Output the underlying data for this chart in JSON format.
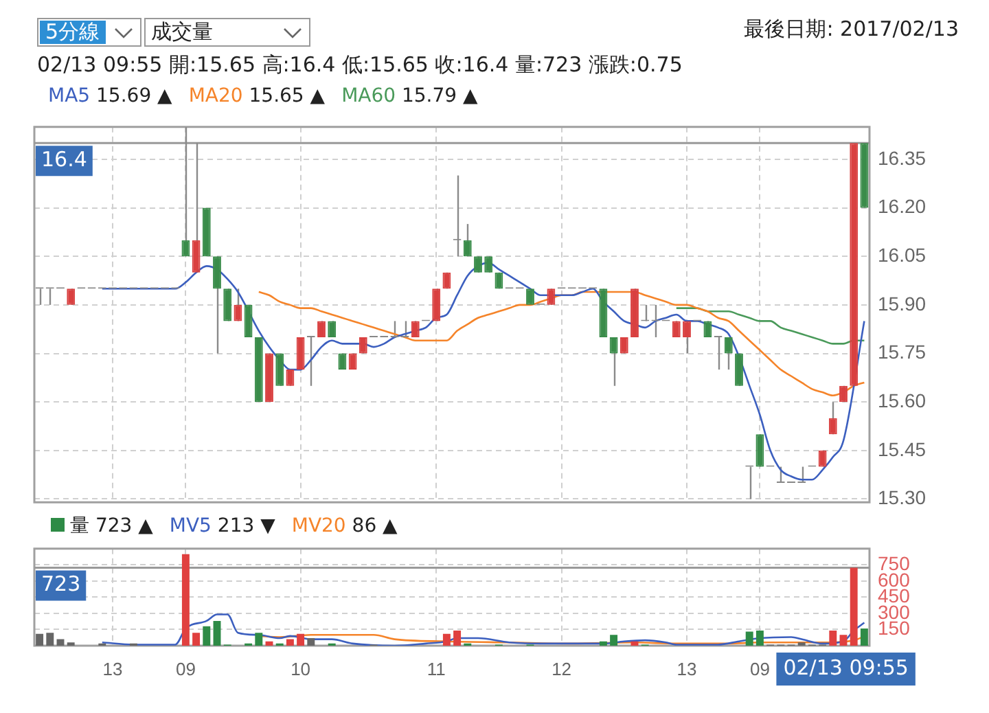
{
  "chart_data": [
    {
      "type": "candlestick",
      "title": "最後日期: 2017/02/13",
      "subtitle": "02/13 09:55 開:15.65 高:16.4 低:15.65 收:16.4 量:723 漲跌:0.75",
      "annotations": [
        "5分線",
        "成交量"
      ],
      "categories": [
        null,
        null,
        null,
        null,
        null,
        null,
        null,
        "13",
        null,
        null,
        null,
        null,
        null,
        null,
        "09",
        null,
        null,
        null,
        null,
        null,
        null,
        null,
        null,
        null,
        null,
        "10",
        null,
        null,
        null,
        null,
        null,
        null,
        null,
        null,
        null,
        null,
        null,
        null,
        "11",
        null,
        null,
        null,
        null,
        null,
        null,
        null,
        null,
        null,
        null,
        null,
        "12",
        null,
        null,
        null,
        null,
        null,
        null,
        null,
        null,
        null,
        null,
        null,
        "13",
        null,
        null,
        null,
        null,
        null,
        null,
        "09",
        null,
        null,
        null,
        null,
        null,
        null,
        null,
        null,
        null,
        null
      ],
      "ohlc": [
        [
          15.95,
          15.95,
          15.9,
          15.95
        ],
        [
          15.95,
          15.95,
          15.9,
          15.95
        ],
        [
          15.95,
          15.95,
          15.95,
          15.95
        ],
        [
          15.9,
          15.95,
          15.9,
          15.95
        ],
        [
          15.95,
          15.95,
          15.95,
          15.95
        ],
        [
          15.95,
          15.95,
          15.95,
          15.95
        ],
        [
          15.95,
          15.95,
          15.95,
          15.95
        ],
        [
          15.95,
          15.95,
          15.95,
          15.95
        ],
        [
          15.95,
          15.95,
          15.95,
          15.95
        ],
        [
          15.95,
          15.95,
          15.95,
          15.95
        ],
        [
          15.95,
          15.95,
          15.95,
          15.95
        ],
        [
          15.95,
          15.95,
          15.95,
          15.95
        ],
        [
          15.95,
          15.95,
          15.95,
          15.95
        ],
        [
          15.95,
          15.95,
          15.95,
          15.95
        ],
        [
          16.1,
          16.45,
          16.05,
          16.05
        ],
        [
          16.0,
          16.4,
          16.0,
          16.1
        ],
        [
          16.2,
          16.2,
          16.05,
          16.05
        ],
        [
          16.05,
          16.05,
          15.75,
          15.95
        ],
        [
          15.95,
          15.95,
          15.85,
          15.85
        ],
        [
          15.85,
          15.95,
          15.85,
          15.9
        ],
        [
          15.9,
          15.9,
          15.8,
          15.8
        ],
        [
          15.8,
          15.8,
          15.6,
          15.6
        ],
        [
          15.6,
          15.75,
          15.6,
          15.75
        ],
        [
          15.75,
          15.75,
          15.65,
          15.65
        ],
        [
          15.65,
          15.7,
          15.65,
          15.7
        ],
        [
          15.7,
          15.8,
          15.7,
          15.8
        ],
        [
          15.8,
          15.8,
          15.65,
          15.8
        ],
        [
          15.8,
          15.85,
          15.8,
          15.85
        ],
        [
          15.85,
          15.85,
          15.8,
          15.8
        ],
        [
          15.75,
          15.75,
          15.7,
          15.7
        ],
        [
          15.7,
          15.75,
          15.7,
          15.75
        ],
        [
          15.75,
          15.8,
          15.75,
          15.8
        ],
        [
          15.8,
          15.8,
          15.8,
          15.8
        ],
        [
          15.8,
          15.8,
          15.8,
          15.8
        ],
        [
          15.8,
          15.85,
          15.8,
          15.8
        ],
        [
          15.8,
          15.85,
          15.8,
          15.8
        ],
        [
          15.8,
          15.85,
          15.8,
          15.85
        ],
        [
          15.85,
          15.85,
          15.85,
          15.85
        ],
        [
          15.85,
          15.95,
          15.85,
          15.95
        ],
        [
          15.95,
          16.0,
          15.95,
          16.0
        ],
        [
          16.1,
          16.3,
          16.05,
          16.1
        ],
        [
          16.1,
          16.15,
          16.05,
          16.05
        ],
        [
          16.05,
          16.05,
          16.0,
          16.0
        ],
        [
          16.05,
          16.05,
          16.0,
          16.0
        ],
        [
          16.0,
          16.0,
          15.95,
          15.95
        ],
        [
          15.95,
          15.95,
          15.95,
          15.95
        ],
        [
          15.95,
          15.95,
          15.95,
          15.95
        ],
        [
          15.95,
          15.95,
          15.9,
          15.9
        ],
        [
          15.9,
          15.9,
          15.9,
          15.9
        ],
        [
          15.9,
          15.95,
          15.9,
          15.95
        ],
        [
          15.95,
          15.95,
          15.95,
          15.95
        ],
        [
          15.95,
          15.95,
          15.95,
          15.95
        ],
        [
          15.95,
          15.95,
          15.95,
          15.95
        ],
        [
          15.95,
          15.95,
          15.95,
          15.95
        ],
        [
          15.95,
          15.95,
          15.8,
          15.8
        ],
        [
          15.8,
          15.8,
          15.65,
          15.75
        ],
        [
          15.75,
          15.8,
          15.75,
          15.8
        ],
        [
          15.8,
          15.95,
          15.8,
          15.95
        ],
        [
          15.85,
          15.9,
          15.85,
          15.85
        ],
        [
          15.85,
          15.9,
          15.8,
          15.85
        ],
        [
          15.85,
          15.85,
          15.85,
          15.85
        ],
        [
          15.8,
          15.85,
          15.8,
          15.85
        ],
        [
          15.8,
          15.85,
          15.75,
          15.85
        ],
        [
          15.85,
          15.85,
          15.85,
          15.85
        ],
        [
          15.85,
          15.85,
          15.8,
          15.8
        ],
        [
          15.8,
          15.8,
          15.7,
          15.8
        ],
        [
          15.8,
          15.8,
          15.7,
          15.75
        ],
        [
          15.75,
          15.75,
          15.65,
          15.65
        ],
        [
          15.4,
          15.4,
          15.3,
          15.4
        ],
        [
          15.5,
          15.5,
          15.4,
          15.4
        ],
        [
          15.4,
          15.4,
          15.4,
          15.4
        ],
        [
          15.35,
          15.4,
          15.35,
          15.35
        ],
        [
          15.35,
          15.35,
          15.35,
          15.35
        ],
        [
          15.35,
          15.4,
          15.35,
          15.35
        ],
        [
          15.4,
          15.4,
          15.4,
          15.4
        ],
        [
          15.4,
          15.45,
          15.4,
          15.45
        ],
        [
          15.5,
          15.6,
          15.5,
          15.55
        ],
        [
          15.6,
          15.65,
          15.6,
          15.65
        ],
        [
          15.65,
          16.4,
          15.65,
          16.4
        ],
        [
          16.4,
          16.4,
          16.2,
          16.2
        ]
      ],
      "colors": [
        "#888888",
        "#888888",
        "#888888",
        "#d94040",
        "#888888",
        "#888888",
        "#888888",
        "#888888",
        "#888888",
        "#888888",
        "#888888",
        "#888888",
        "#888888",
        "#888888",
        "#3a8c4a",
        "#d94040",
        "#3a8c4a",
        "#3a8c4a",
        "#3a8c4a",
        "#d94040",
        "#3a8c4a",
        "#3a8c4a",
        "#d94040",
        "#3a8c4a",
        "#d94040",
        "#d94040",
        "#888888",
        "#d94040",
        "#3a8c4a",
        "#3a8c4a",
        "#d94040",
        "#d94040",
        "#888888",
        "#888888",
        "#888888",
        "#888888",
        "#d94040",
        "#888888",
        "#d94040",
        "#d94040",
        "#888888",
        "#3a8c4a",
        "#3a8c4a",
        "#3a8c4a",
        "#3a8c4a",
        "#888888",
        "#888888",
        "#3a8c4a",
        "#888888",
        "#d94040",
        "#888888",
        "#888888",
        "#888888",
        "#888888",
        "#3a8c4a",
        "#3a8c4a",
        "#d94040",
        "#d94040",
        "#888888",
        "#888888",
        "#888888",
        "#d94040",
        "#d94040",
        "#888888",
        "#3a8c4a",
        "#888888",
        "#3a8c4a",
        "#3a8c4a",
        "#888888",
        "#3a8c4a",
        "#888888",
        "#888888",
        "#888888",
        "#888888",
        "#888888",
        "#d94040",
        "#d94040",
        "#d94040",
        "#d94040",
        "#3a8c4a"
      ],
      "series": [
        {
          "type": "line",
          "name": "MA5 15.69 ▲",
          "color": "#3c5fbf",
          "values": [
            null,
            null,
            null,
            null,
            null,
            null,
            15.95,
            15.95,
            15.95,
            15.95,
            15.95,
            15.95,
            15.95,
            15.95,
            15.97,
            16.0,
            16.02,
            16.01,
            15.98,
            15.94,
            null,
            15.82,
            15.77,
            15.73,
            15.7,
            15.7,
            15.73,
            15.77,
            15.79,
            15.78,
            15.78,
            15.78,
            15.77,
            15.78,
            15.8,
            15.81,
            15.82,
            15.83,
            15.86,
            15.87,
            15.93,
            15.99,
            16.02,
            16.03,
            16.01,
            15.99,
            15.97,
            15.95,
            15.93,
            15.93,
            15.93,
            15.93,
            15.94,
            15.95,
            15.91,
            15.88,
            15.85,
            15.84,
            15.83,
            15.85,
            15.86,
            15.87,
            15.85,
            15.85,
            15.84,
            15.83,
            15.81,
            15.74,
            15.65,
            15.56,
            15.45,
            15.39,
            15.37,
            15.36,
            15.36,
            15.39,
            15.43,
            15.48,
            null,
            15.85
          ]
        },
        {
          "type": "line",
          "name": "MA20 15.65 ▲",
          "color": "#f5842a",
          "values": [
            null,
            null,
            null,
            null,
            null,
            null,
            null,
            null,
            null,
            null,
            null,
            null,
            null,
            null,
            null,
            null,
            null,
            null,
            null,
            null,
            null,
            15.94,
            15.93,
            15.91,
            15.9,
            15.89,
            15.89,
            15.88,
            15.87,
            15.86,
            15.85,
            15.84,
            15.83,
            15.82,
            15.81,
            15.8,
            15.79,
            15.79,
            15.79,
            15.79,
            15.82,
            15.84,
            15.86,
            15.87,
            15.88,
            15.89,
            15.9,
            15.9,
            15.91,
            15.92,
            15.93,
            15.93,
            15.94,
            15.94,
            15.94,
            15.94,
            15.94,
            15.94,
            15.93,
            15.92,
            15.91,
            15.9,
            15.9,
            15.89,
            15.88,
            15.86,
            15.85,
            15.82,
            15.79,
            15.76,
            15.73,
            15.7,
            15.68,
            15.66,
            15.64,
            15.63,
            15.62,
            15.63,
            15.65,
            15.66
          ]
        },
        {
          "type": "line",
          "name": "MA60 15.79 ▲",
          "color": "#4a9a5a",
          "values": [
            null,
            null,
            null,
            null,
            null,
            null,
            null,
            null,
            null,
            null,
            null,
            null,
            null,
            null,
            null,
            null,
            null,
            null,
            null,
            null,
            null,
            null,
            null,
            null,
            null,
            null,
            null,
            null,
            null,
            null,
            null,
            null,
            null,
            null,
            null,
            null,
            null,
            null,
            null,
            null,
            null,
            null,
            null,
            null,
            null,
            null,
            null,
            null,
            null,
            null,
            null,
            null,
            null,
            null,
            null,
            null,
            null,
            null,
            null,
            null,
            null,
            15.89,
            15.89,
            15.89,
            15.88,
            15.88,
            15.88,
            15.87,
            15.86,
            15.85,
            15.85,
            15.83,
            15.82,
            15.81,
            15.8,
            15.79,
            15.78,
            15.78,
            15.79,
            15.79
          ]
        }
      ],
      "ylim": [
        15.29,
        16.45
      ],
      "yticks": [
        {
          "value": 15.3,
          "label": "15.30"
        },
        15.45,
        {
          "value": 15.6,
          "label": "15.60"
        },
        15.75,
        {
          "value": 15.9,
          "label": "15.90"
        },
        16.05,
        {
          "value": 16.2,
          "label": "16.20"
        },
        16.35
      ],
      "ref_lines": [
        {
          "axis": "y",
          "value": 16.4,
          "label": "16.4",
          "color": "#999999"
        }
      ],
      "grid": true,
      "legend": "top left",
      "tick_labels": "y",
      "marker": "none"
    },
    {
      "type": "bar",
      "annotations": [
        "02/13 09:55"
      ],
      "categories": [
        null,
        null,
        null,
        null,
        null,
        null,
        null,
        "13",
        null,
        null,
        null,
        null,
        null,
        null,
        "09",
        null,
        null,
        null,
        null,
        null,
        null,
        null,
        null,
        null,
        null,
        "10",
        null,
        null,
        null,
        null,
        null,
        null,
        null,
        null,
        null,
        null,
        null,
        null,
        "11",
        null,
        null,
        null,
        null,
        null,
        null,
        null,
        null,
        null,
        null,
        null,
        "12",
        null,
        null,
        null,
        null,
        null,
        null,
        null,
        null,
        null,
        null,
        null,
        "13",
        null,
        null,
        null,
        null,
        null,
        null,
        "09",
        null,
        null,
        null,
        null,
        null,
        null,
        null,
        null,
        null,
        null
      ],
      "series": [
        {
          "type": "bar",
          "name": "量 723 ▲",
          "colors": [
            "#666666",
            "#666666",
            "#666666",
            "#666666",
            "#666666",
            "#666666",
            "#666666",
            "#666666",
            "#666666",
            "#666666",
            "#666666",
            "#666666",
            "#666666",
            "#666666",
            "#e0403f",
            "#e0403f",
            "#2e8b46",
            "#2e8b46",
            "#2e8b46",
            "#666666",
            "#2e8b46",
            "#2e8b46",
            "#e0403f",
            "#2e8b46",
            "#e0403f",
            "#e0403f",
            "#666666",
            "#666666",
            "#2e8b46",
            "#666666",
            "#666666",
            "#666666",
            "#666666",
            "#666666",
            "#666666",
            "#666666",
            "#666666",
            "#666666",
            "#666666",
            "#e0403f",
            "#e0403f",
            "#2e8b46",
            "#666666",
            "#666666",
            "#2e8b46",
            "#666666",
            "#666666",
            "#2e8b46",
            "#666666",
            "#666666",
            "#666666",
            "#666666",
            "#666666",
            "#666666",
            "#2e8b46",
            "#2e8b46",
            "#666666",
            "#e0403f",
            "#2e8b46",
            "#666666",
            "#666666",
            "#666666",
            "#666666",
            "#666666",
            "#666666",
            "#666666",
            "#666666",
            "#666666",
            "#2e8b46",
            "#2e8b46",
            "#666666",
            "#666666",
            "#666666",
            "#666666",
            "#666666",
            "#666666",
            "#e0403f",
            "#e0403f",
            "#e0403f",
            "#2e8b46"
          ],
          "values": [
            110,
            120,
            60,
            30,
            null,
            null,
            20,
            null,
            null,
            20,
            null,
            null,
            null,
            null,
            850,
            120,
            180,
            230,
            10,
            null,
            20,
            120,
            40,
            20,
            60,
            110,
            70,
            null,
            20,
            null,
            null,
            null,
            10,
            null,
            null,
            null,
            null,
            null,
            null,
            110,
            140,
            20,
            null,
            null,
            10,
            null,
            null,
            10,
            null,
            null,
            null,
            null,
            null,
            null,
            40,
            100,
            null,
            40,
            10,
            null,
            null,
            null,
            null,
            null,
            null,
            null,
            null,
            null,
            130,
            140,
            10,
            10,
            10,
            30,
            10,
            10,
            140,
            100,
            723,
            160
          ]
        },
        {
          "type": "line",
          "name": "MV5 213 ▼",
          "color": "#3c5fbf",
          "values": [
            null,
            null,
            null,
            null,
            null,
            null,
            30,
            null,
            null,
            10,
            null,
            null,
            null,
            10,
            160,
            null,
            230,
            290,
            290,
            120,
            null,
            100,
            null,
            70,
            90,
            null,
            60,
            null,
            60,
            null,
            20,
            null,
            null,
            null,
            0,
            null,
            null,
            20,
            null,
            40,
            70,
            null,
            70,
            null,
            null,
            30,
            null,
            null,
            20,
            null,
            null,
            null,
            null,
            null,
            20,
            null,
            40,
            null,
            50,
            null,
            30,
            10,
            null,
            null,
            null,
            10,
            null,
            40,
            null,
            70,
            null,
            null,
            80,
            60,
            null,
            20,
            null,
            40,
            140,
            213
          ]
        },
        {
          "type": "line",
          "name": "MV20 86 ▲",
          "color": "#f5842a",
          "values": [
            null,
            null,
            null,
            null,
            null,
            null,
            null,
            null,
            null,
            null,
            null,
            null,
            null,
            null,
            null,
            null,
            null,
            null,
            null,
            null,
            null,
            90,
            null,
            80,
            null,
            null,
            100,
            null,
            null,
            null,
            null,
            null,
            100,
            null,
            60,
            null,
            null,
            null,
            null,
            40,
            null,
            null,
            null,
            null,
            null,
            30,
            null,
            null,
            null,
            null,
            null,
            20,
            null,
            null,
            null,
            null,
            null,
            30,
            null,
            null,
            null,
            20,
            null,
            null,
            null,
            null,
            20,
            null,
            null,
            30,
            null,
            null,
            null,
            null,
            null,
            30,
            null,
            null,
            50,
            86
          ]
        }
      ],
      "ylim": [
        0,
        900
      ],
      "yticks": [
        150,
        300,
        450,
        600,
        750
      ],
      "ref_lines": [
        {
          "axis": "y",
          "value": 723,
          "label": "723",
          "color": "#999999"
        }
      ],
      "grid": true,
      "legend": "top left",
      "marker": "none"
    }
  ]
}
